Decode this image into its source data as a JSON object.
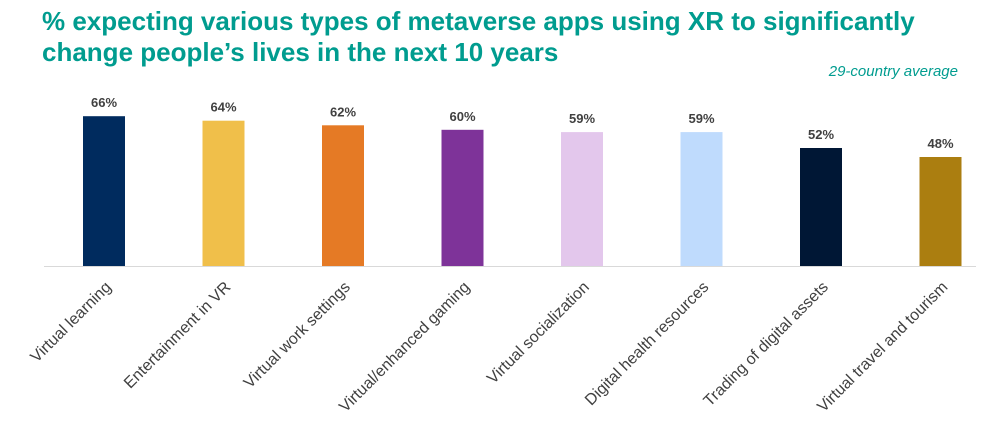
{
  "chart_data": {
    "type": "bar",
    "title": "% expecting various types of metaverse apps using XR to significantly change people’s lives in the next 10 years",
    "subtitle": "29-country average",
    "categories": [
      "Virtual learning",
      "Entertainment in VR",
      "Virtual work settings",
      "Virtual/enhanced gaming",
      "Virtual socialization",
      "Digital health resources",
      "Trading of digital assets",
      "Virtual travel and tourism"
    ],
    "values": [
      66,
      64,
      62,
      60,
      59,
      59,
      52,
      48
    ],
    "value_labels": [
      "66%",
      "64%",
      "62%",
      "60%",
      "59%",
      "59%",
      "52%",
      "48%"
    ],
    "colors": [
      "#002b5e",
      "#f0bf4a",
      "#e57a25",
      "#7e3399",
      "#e3c7ec",
      "#bfdbfd",
      "#001735",
      "#ab7e10"
    ],
    "xlabel": "",
    "ylabel": "",
    "ylim": [
      0,
      66
    ],
    "grid": false,
    "legend": "none"
  }
}
